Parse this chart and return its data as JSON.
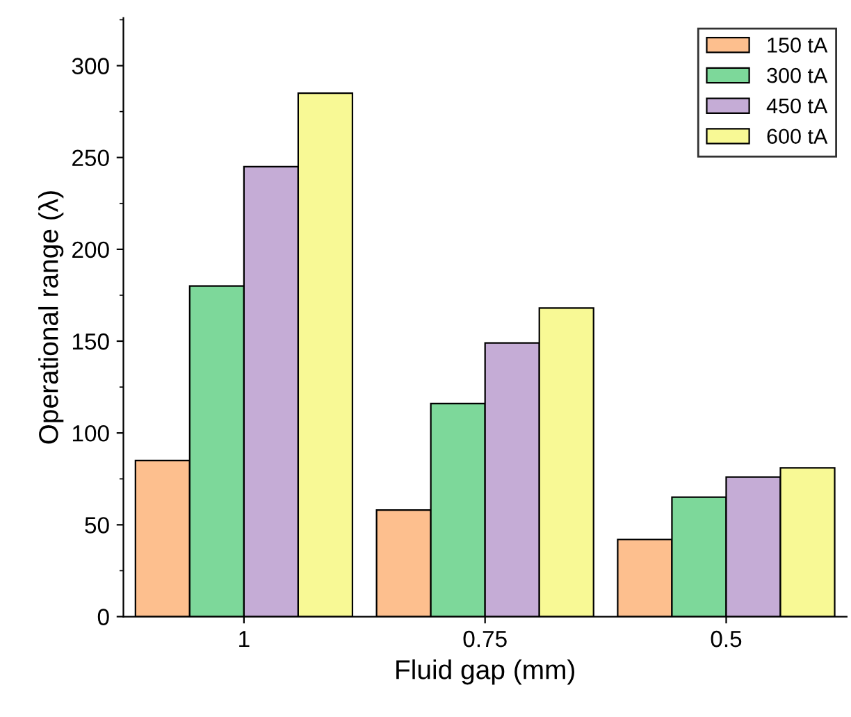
{
  "chart_data": {
    "type": "bar",
    "xlabel": "Fluid gap (mm)",
    "ylabel": "Operational range (λ)",
    "categories": [
      "1",
      "0.75",
      "0.5"
    ],
    "series": [
      {
        "name": "150 tA",
        "color": "#fdbf8e",
        "values": [
          85,
          58,
          42
        ]
      },
      {
        "name": "300 tA",
        "color": "#7dd89a",
        "values": [
          180,
          116,
          65
        ]
      },
      {
        "name": "450 tA",
        "color": "#c5acd6",
        "values": [
          245,
          149,
          76
        ]
      },
      {
        "name": "600 tA",
        "color": "#f8f995",
        "values": [
          285,
          168,
          81
        ]
      }
    ],
    "ylim": [
      0,
      326
    ],
    "yticks": [
      0,
      50,
      100,
      150,
      200,
      250,
      300
    ],
    "grid": false,
    "legend": "top right"
  }
}
